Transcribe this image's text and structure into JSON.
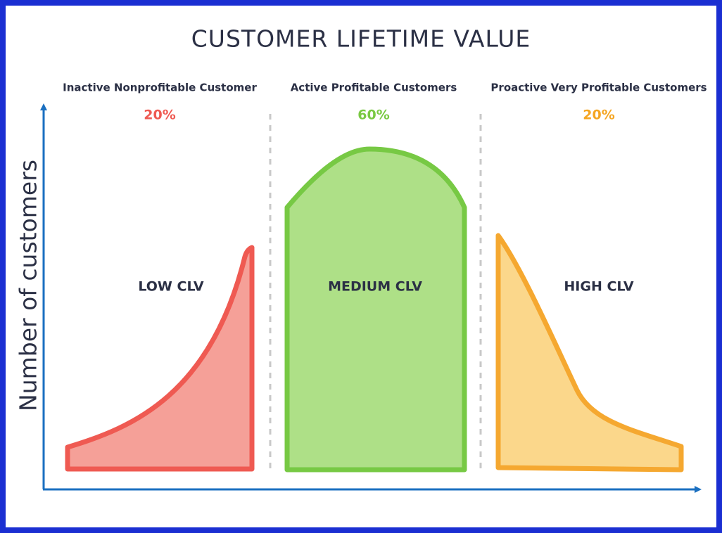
{
  "title": "CUSTOMER LIFETIME VALUE",
  "y_axis_label": "Number of customers",
  "segments": [
    {
      "header": "Inactive Nonprofitable Customer",
      "percent": "20%",
      "label": "LOW CLV"
    },
    {
      "header": "Active Profitable Customers",
      "percent": "60%",
      "label": "MEDIUM CLV"
    },
    {
      "header": "Proactive Very Profitable Customers",
      "percent": "20%",
      "label": "HIGH CLV"
    }
  ]
}
